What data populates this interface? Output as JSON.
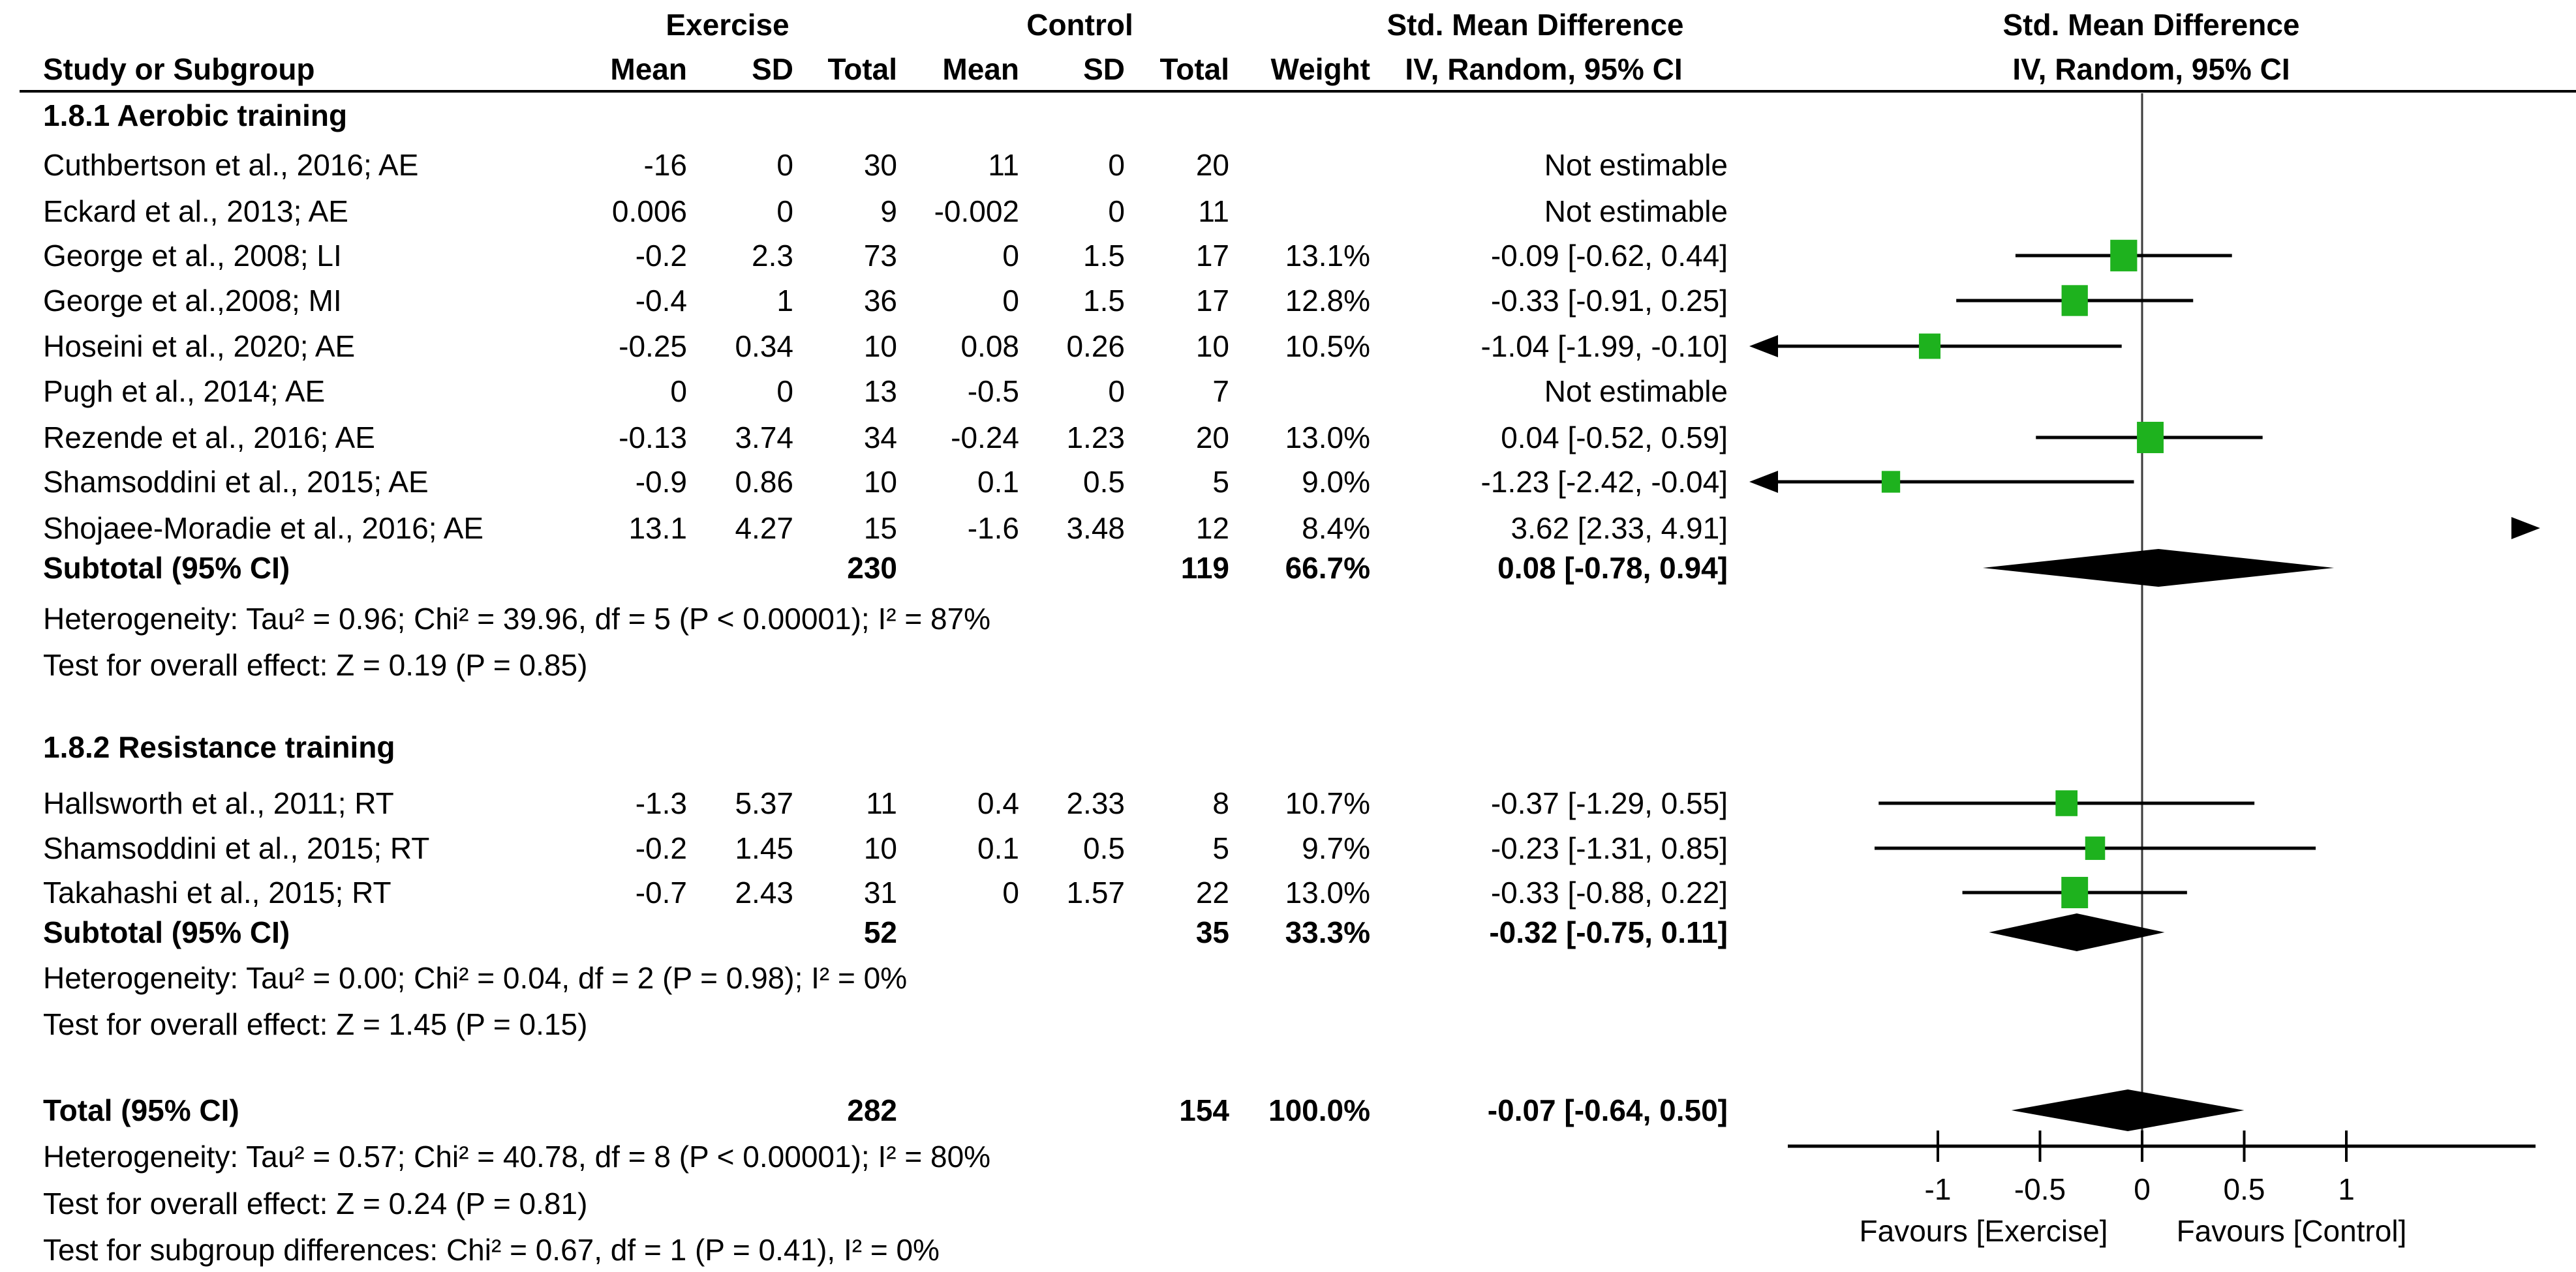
{
  "header": {
    "col_study": "Study or Subgroup",
    "group_exercise": "Exercise",
    "group_control": "Control",
    "col_mean": "Mean",
    "col_sd": "SD",
    "col_total": "Total",
    "col_weight": "Weight",
    "smd_title": "Std. Mean Difference",
    "iv_label": "IV, Random, 95% CI"
  },
  "colors": {
    "marker_green": "#1eb21e",
    "diamond_black": "#000000",
    "zero_line_gray": "#3a3a3a",
    "text": "#000000"
  },
  "sections": [
    {
      "title": "1.8.1 Aerobic training",
      "studies": [
        {
          "label": "Cuthbertson et al., 2016; AE",
          "mean1": "-16",
          "sd1": "0",
          "total1": "30",
          "mean2": "11",
          "sd2": "0",
          "total2": "20",
          "weight": "",
          "ci": "Not estimable"
        },
        {
          "label": "Eckard et al., 2013; AE",
          "mean1": "0.006",
          "sd1": "0",
          "total1": "9",
          "mean2": "-0.002",
          "sd2": "0",
          "total2": "11",
          "weight": "",
          "ci": "Not estimable"
        },
        {
          "label": "George et al., 2008; LI",
          "mean1": "-0.2",
          "sd1": "2.3",
          "total1": "73",
          "mean2": "0",
          "sd2": "1.5",
          "total2": "17",
          "weight": "13.1%",
          "ci": "-0.09 [-0.62, 0.44]"
        },
        {
          "label": "George et al.,2008; MI",
          "mean1": "-0.4",
          "sd1": "1",
          "total1": "36",
          "mean2": "0",
          "sd2": "1.5",
          "total2": "17",
          "weight": "12.8%",
          "ci": "-0.33 [-0.91, 0.25]"
        },
        {
          "label": "Hoseini et al., 2020; AE",
          "mean1": "-0.25",
          "sd1": "0.34",
          "total1": "10",
          "mean2": "0.08",
          "sd2": "0.26",
          "total2": "10",
          "weight": "10.5%",
          "ci": "-1.04 [-1.99, -0.10]"
        },
        {
          "label": "Pugh et al., 2014; AE",
          "mean1": "0",
          "sd1": "0",
          "total1": "13",
          "mean2": "-0.5",
          "sd2": "0",
          "total2": "7",
          "weight": "",
          "ci": "Not estimable"
        },
        {
          "label": "Rezende et al., 2016; AE",
          "mean1": "-0.13",
          "sd1": "3.74",
          "total1": "34",
          "mean2": "-0.24",
          "sd2": "1.23",
          "total2": "20",
          "weight": "13.0%",
          "ci": "0.04 [-0.52, 0.59]"
        },
        {
          "label": "Shamsoddini et al., 2015; AE",
          "mean1": "-0.9",
          "sd1": "0.86",
          "total1": "10",
          "mean2": "0.1",
          "sd2": "0.5",
          "total2": "5",
          "weight": "9.0%",
          "ci": "-1.23 [-2.42, -0.04]"
        },
        {
          "label": "Shojaee-Moradie et al., 2016; AE",
          "mean1": "13.1",
          "sd1": "4.27",
          "total1": "15",
          "mean2": "-1.6",
          "sd2": "3.48",
          "total2": "12",
          "weight": "8.4%",
          "ci": "3.62 [2.33, 4.91]"
        }
      ],
      "subtotal": {
        "label": "Subtotal (95% CI)",
        "total1": "230",
        "total2": "119",
        "weight": "66.7%",
        "ci": "0.08 [-0.78, 0.94]"
      },
      "heterogeneity": "Heterogeneity: Tau² = 0.96; Chi² = 39.96, df = 5 (P < 0.00001); I² = 87%",
      "overall_effect": "Test for overall effect: Z = 0.19 (P = 0.85)"
    },
    {
      "title": "1.8.2 Resistance training",
      "studies": [
        {
          "label": "Hallsworth et al., 2011; RT",
          "mean1": "-1.3",
          "sd1": "5.37",
          "total1": "11",
          "mean2": "0.4",
          "sd2": "2.33",
          "total2": "8",
          "weight": "10.7%",
          "ci": "-0.37 [-1.29, 0.55]"
        },
        {
          "label": "Shamsoddini et al., 2015; RT",
          "mean1": "-0.2",
          "sd1": "1.45",
          "total1": "10",
          "mean2": "0.1",
          "sd2": "0.5",
          "total2": "5",
          "weight": "9.7%",
          "ci": "-0.23 [-1.31, 0.85]"
        },
        {
          "label": "Takahashi et al., 2015; RT",
          "mean1": "-0.7",
          "sd1": "2.43",
          "total1": "31",
          "mean2": "0",
          "sd2": "1.57",
          "total2": "22",
          "weight": "13.0%",
          "ci": "-0.33 [-0.88, 0.22]"
        }
      ],
      "subtotal": {
        "label": "Subtotal (95% CI)",
        "total1": "52",
        "total2": "35",
        "weight": "33.3%",
        "ci": "-0.32 [-0.75, 0.11]"
      },
      "heterogeneity": "Heterogeneity: Tau² = 0.00; Chi² = 0.04, df = 2 (P = 0.98); I² = 0%",
      "overall_effect": "Test for overall effect: Z = 1.45 (P = 0.15)"
    }
  ],
  "total": {
    "row": {
      "label": "Total (95% CI)",
      "total1": "282",
      "total2": "154",
      "weight": "100.0%",
      "ci": "-0.07 [-0.64, 0.50]"
    },
    "heterogeneity": "Heterogeneity: Tau² = 0.57; Chi² = 40.78, df = 8 (P < 0.00001); I² = 80%",
    "overall_effect": "Test for overall effect: Z = 0.24 (P = 0.81)",
    "subgroup_differences": "Test for subgroup differences: Chi² = 0.67, df = 1 (P = 0.41), I² = 0%"
  },
  "chart_data": {
    "type": "forest",
    "effect_measure": "Std. Mean Difference (IV, Random, 95% CI)",
    "x_ticks": [
      -1,
      -0.5,
      0,
      0.5,
      1
    ],
    "x_visible_range": [
      -1.86,
      1.95
    ],
    "favours_left": "Favours [Exercise]",
    "favours_right": "Favours [Control]",
    "points": [
      {
        "label": "George et al., 2008; LI",
        "est": -0.09,
        "lo": -0.62,
        "hi": 0.44,
        "weight": 13.1
      },
      {
        "label": "George et al.,2008; MI",
        "est": -0.33,
        "lo": -0.91,
        "hi": 0.25,
        "weight": 12.8
      },
      {
        "label": "Hoseini et al., 2020; AE",
        "est": -1.04,
        "lo": -1.99,
        "hi": -0.1,
        "weight": 10.5
      },
      {
        "label": "Rezende et al., 2016; AE",
        "est": 0.04,
        "lo": -0.52,
        "hi": 0.59,
        "weight": 13.0
      },
      {
        "label": "Shamsoddini et al., 2015; AE",
        "est": -1.23,
        "lo": -2.42,
        "hi": -0.04,
        "weight": 9.0
      },
      {
        "label": "Shojaee-Moradie et al., 2016; AE",
        "est": 3.62,
        "lo": 2.33,
        "hi": 4.91,
        "weight": 8.4
      },
      {
        "label": "Hallsworth et al., 2011; RT",
        "est": -0.37,
        "lo": -1.29,
        "hi": 0.55,
        "weight": 10.7
      },
      {
        "label": "Shamsoddini et al., 2015; RT",
        "est": -0.23,
        "lo": -1.31,
        "hi": 0.85,
        "weight": 9.7
      },
      {
        "label": "Takahashi et al., 2015; RT",
        "est": -0.33,
        "lo": -0.88,
        "hi": 0.22,
        "weight": 13.0
      }
    ],
    "diamonds": [
      {
        "label": "Subtotal Aerobic",
        "est": 0.08,
        "lo": -0.78,
        "hi": 0.94
      },
      {
        "label": "Subtotal Resistance",
        "est": -0.32,
        "lo": -0.75,
        "hi": 0.11
      },
      {
        "label": "Total",
        "est": -0.07,
        "lo": -0.64,
        "hi": 0.5
      }
    ]
  }
}
